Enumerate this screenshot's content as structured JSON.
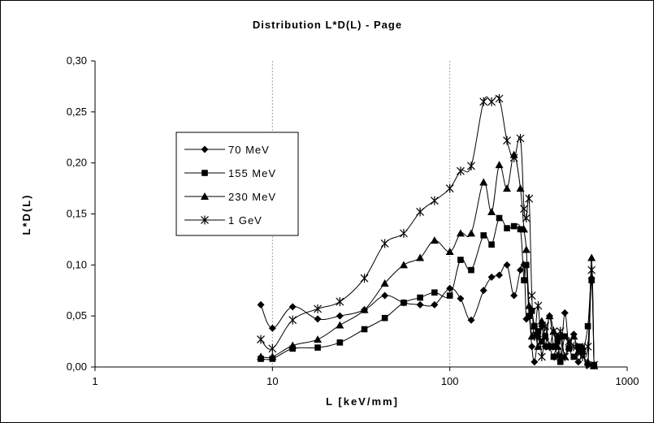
{
  "chart_data": {
    "type": "line",
    "title": "Distribution L*D(L) - Page",
    "xlabel": "L [keV/mm]",
    "ylabel": "L*D(L)",
    "x_scale": "log",
    "xlim": [
      1,
      1000
    ],
    "ylim": [
      0,
      0.3
    ],
    "x_ticks": [
      "1",
      "10",
      "100",
      "1000"
    ],
    "y_ticks": [
      "0,00",
      "0,05",
      "0,10",
      "0,15",
      "0,20",
      "0,25",
      "0,30"
    ],
    "grid": "vertical at decades",
    "legend_position": "upper-left",
    "series": [
      {
        "name": "70 MeV",
        "marker": "diamond",
        "x": [
          8.6,
          10,
          13,
          18,
          24,
          33,
          43,
          55,
          68,
          82,
          100,
          115,
          132,
          155,
          172,
          190,
          210,
          230,
          250,
          262,
          270,
          280,
          290,
          300,
          315,
          330,
          345,
          365,
          385,
          405,
          420,
          445,
          470,
          500,
          530,
          560,
          600,
          630,
          650
        ],
        "y": [
          0.061,
          0.038,
          0.059,
          0.047,
          0.05,
          0.056,
          0.07,
          0.063,
          0.061,
          0.061,
          0.077,
          0.067,
          0.046,
          0.075,
          0.088,
          0.09,
          0.1,
          0.07,
          0.095,
          0.1,
          0.047,
          0.05,
          0.02,
          0.005,
          0.03,
          0.04,
          0.02,
          0.05,
          0.02,
          0.03,
          0.01,
          0.053,
          0.02,
          0.032,
          0.005,
          0.015,
          0.002,
          0.087,
          0.001
        ]
      },
      {
        "name": "155 MeV",
        "marker": "square",
        "x": [
          8.6,
          10,
          13,
          18,
          24,
          33,
          43,
          55,
          68,
          82,
          100,
          115,
          132,
          155,
          172,
          190,
          210,
          230,
          250,
          262,
          270,
          280,
          290,
          300,
          315,
          330,
          345,
          365,
          385,
          405,
          420,
          445,
          470,
          500,
          530,
          560,
          600,
          630,
          650
        ],
        "y": [
          0.008,
          0.008,
          0.018,
          0.019,
          0.024,
          0.037,
          0.048,
          0.063,
          0.068,
          0.073,
          0.07,
          0.105,
          0.095,
          0.129,
          0.12,
          0.146,
          0.136,
          0.138,
          0.135,
          0.085,
          0.1,
          0.05,
          0.055,
          0.04,
          0.035,
          0.025,
          0.03,
          0.02,
          0.01,
          0.025,
          0.005,
          0.03,
          0.018,
          0.01,
          0.02,
          0.015,
          0.04,
          0.085,
          0.002
        ]
      },
      {
        "name": "230 MeV",
        "marker": "triangle",
        "x": [
          8.6,
          10,
          13,
          18,
          24,
          33,
          43,
          55,
          68,
          82,
          100,
          115,
          132,
          155,
          172,
          190,
          210,
          230,
          250,
          262,
          270,
          280,
          290,
          300,
          315,
          330,
          345,
          365,
          385,
          405,
          420,
          445,
          470,
          500,
          530,
          560,
          600,
          630,
          650
        ],
        "y": [
          0.01,
          0.01,
          0.021,
          0.027,
          0.041,
          0.056,
          0.082,
          0.1,
          0.107,
          0.124,
          0.113,
          0.131,
          0.131,
          0.181,
          0.152,
          0.198,
          0.175,
          0.208,
          0.175,
          0.135,
          0.115,
          0.06,
          0.03,
          0.04,
          0.02,
          0.045,
          0.03,
          0.05,
          0.035,
          0.02,
          0.03,
          0.01,
          0.02,
          0.03,
          0.015,
          0.02,
          0.005,
          0.107,
          0.001
        ]
      },
      {
        "name": "1 GeV",
        "marker": "star",
        "x": [
          8.6,
          10,
          13,
          18,
          24,
          33,
          43,
          55,
          68,
          82,
          100,
          115,
          132,
          155,
          172,
          190,
          210,
          230,
          250,
          262,
          270,
          280,
          290,
          300,
          315,
          330,
          345,
          365,
          385,
          405,
          420,
          445,
          470,
          500,
          530,
          560,
          600,
          630,
          650
        ],
        "y": [
          0.027,
          0.018,
          0.046,
          0.057,
          0.064,
          0.087,
          0.121,
          0.131,
          0.152,
          0.163,
          0.175,
          0.192,
          0.197,
          0.26,
          0.26,
          0.263,
          0.222,
          0.205,
          0.224,
          0.155,
          0.146,
          0.165,
          0.07,
          0.03,
          0.06,
          0.01,
          0.04,
          0.02,
          0.035,
          0.01,
          0.035,
          0.01,
          0.025,
          0.02,
          0.015,
          0.01,
          0.02,
          0.095,
          0.002
        ]
      }
    ]
  }
}
